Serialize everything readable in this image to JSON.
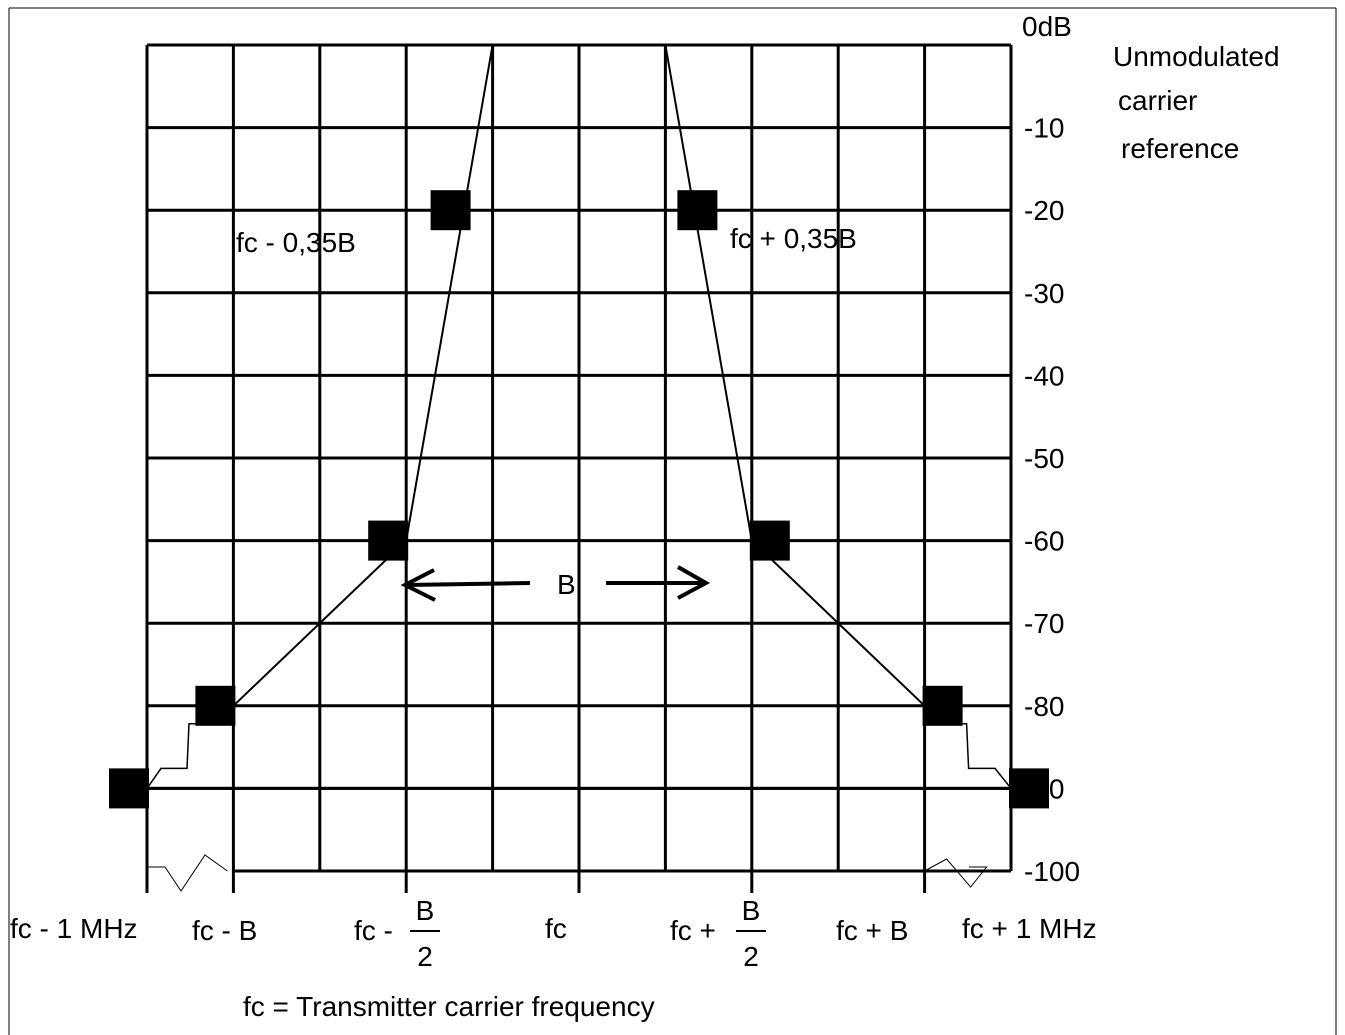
{
  "chart_data": {
    "type": "line",
    "title": "",
    "xlabel": "",
    "ylabel": "",
    "y_ticks": [
      {
        "value": 0,
        "label": "0dB"
      },
      {
        "value": -10,
        "label": "-10"
      },
      {
        "value": -20,
        "label": "-20"
      },
      {
        "value": -30,
        "label": "-30"
      },
      {
        "value": -40,
        "label": "-40"
      },
      {
        "value": -50,
        "label": "-50"
      },
      {
        "value": -60,
        "label": "-60"
      },
      {
        "value": -70,
        "label": "-70"
      },
      {
        "value": -80,
        "label": "-80"
      },
      {
        "value": -90,
        "label": "-90"
      },
      {
        "value": -100,
        "label": "-100"
      }
    ],
    "ylim": [
      -100,
      0
    ],
    "reference_note": [
      "Unmodulated",
      "carrier",
      "reference"
    ],
    "x_ticks": [
      {
        "id": "fc_minus_1mhz",
        "text": "fc - 1 MHz"
      },
      {
        "id": "fc_minus_b",
        "text": "fc - B"
      },
      {
        "id": "fc_minus_half_b",
        "prefix": "fc - ",
        "numerator": "B",
        "denominator": "2"
      },
      {
        "id": "fc",
        "text": "fc"
      },
      {
        "id": "fc_plus_half_b",
        "prefix": "fc + ",
        "numerator": "B",
        "denominator": "2"
      },
      {
        "id": "fc_plus_b",
        "text": "fc + B"
      },
      {
        "id": "fc_plus_1mhz",
        "text": "fc + 1 MHz"
      }
    ],
    "grid": true,
    "grid_columns": 10,
    "mask": [
      {
        "x": "fc - 1 MHz",
        "y": -90
      },
      {
        "x": "fc - B",
        "y": -80
      },
      {
        "x": "fc - B/2",
        "y": -60
      },
      {
        "x": "fc - 0,35B",
        "y": 0
      },
      {
        "x": "fc + 0,35B",
        "y": 0
      },
      {
        "x": "fc + B/2",
        "y": -60
      },
      {
        "x": "fc + B",
        "y": -80
      },
      {
        "x": "fc + 1 MHz",
        "y": -90
      }
    ],
    "markers": [
      {
        "x": "fc - 1 MHz",
        "y": -90
      },
      {
        "x": "fc - B",
        "y": -80
      },
      {
        "x": "fc - B/2",
        "y": -60
      },
      {
        "x": "fc - 0,35B",
        "y": -20
      },
      {
        "x": "fc + 0,35B",
        "y": -20
      },
      {
        "x": "fc + B/2",
        "y": -60
      },
      {
        "x": "fc + B",
        "y": -80
      },
      {
        "x": "fc + 1 MHz",
        "y": -90
      }
    ],
    "annotations": {
      "left_slope": "fc - 0,35B",
      "right_slope": "fc + 0,35B",
      "bandwidth": "B",
      "footnote": "fc = Transmitter carrier frequency"
    }
  }
}
